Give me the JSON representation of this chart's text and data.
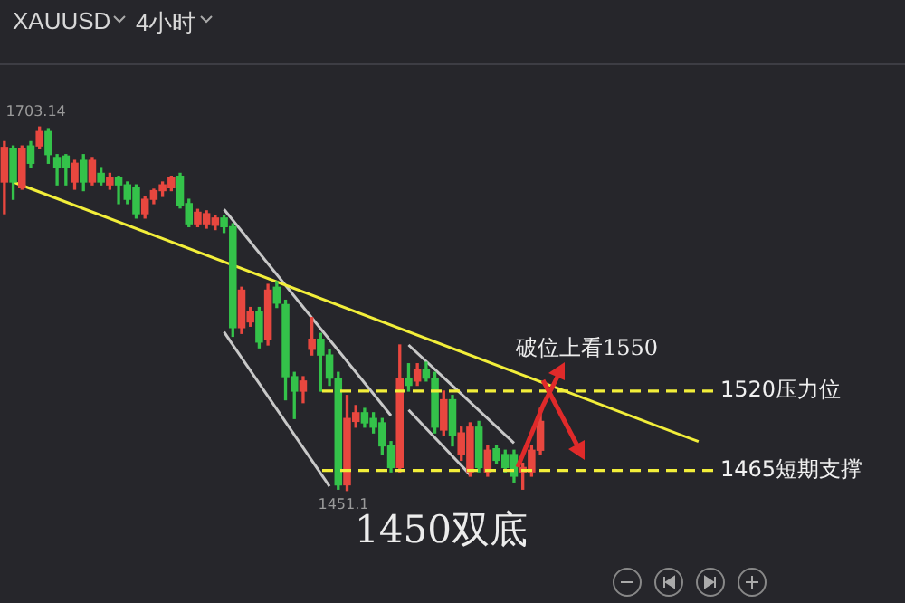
{
  "chart_data": {
    "type": "candlestick",
    "title": "XAUUSD",
    "subtitle": "4小时",
    "categories": [
      null,
      null,
      null,
      null,
      null,
      null,
      null,
      null,
      null,
      null,
      null,
      null,
      null,
      null,
      null,
      null,
      null,
      null,
      null,
      null,
      null,
      null,
      null,
      null,
      null,
      null,
      null,
      null,
      null,
      null,
      null,
      null,
      null,
      null,
      null,
      null,
      null,
      null,
      null,
      null,
      null,
      null,
      null,
      null,
      null,
      null,
      null,
      null,
      null,
      null,
      null,
      null,
      null,
      null,
      null,
      null,
      null,
      null,
      null,
      null,
      null,
      null,
      null,
      null,
      null,
      null,
      null,
      null,
      null,
      null,
      null,
      null,
      null,
      null,
      null,
      null,
      null,
      null,
      null,
      null,
      null,
      null,
      null,
      null,
      null,
      null,
      null,
      null,
      null,
      null,
      null,
      null,
      null,
      null,
      null,
      null,
      null,
      null,
      null,
      null,
      null,
      null,
      null
    ],
    "ohlc": [
      [
        1665,
        1693,
        1643,
        1689
      ],
      [
        1688,
        1690,
        1653,
        1665
      ],
      [
        1661,
        1690,
        1660,
        1688
      ],
      [
        1690,
        1693,
        1675,
        1678
      ],
      [
        1690,
        1703.14,
        1688,
        1700
      ],
      [
        1700,
        1702,
        1678,
        1684
      ],
      [
        1682,
        1684,
        1663,
        1675
      ],
      [
        1683,
        1684,
        1663,
        1675
      ],
      [
        1665,
        1680,
        1660,
        1678
      ],
      [
        1680,
        1684,
        1659,
        1665
      ],
      [
        1665,
        1682,
        1663,
        1680
      ],
      [
        1671,
        1675,
        1663,
        1665
      ],
      [
        1663,
        1671,
        1660,
        1668
      ],
      [
        1668,
        1669,
        1650,
        1663
      ],
      [
        1663,
        1665,
        1650,
        1653
      ],
      [
        1661,
        1663,
        1640,
        1643
      ],
      [
        1643,
        1655,
        1640,
        1653
      ],
      [
        1653,
        1660,
        1650,
        1659
      ],
      [
        1659,
        1665,
        1655,
        1663
      ],
      [
        1661,
        1669,
        1659,
        1668
      ],
      [
        1669,
        1671,
        1647,
        1649
      ],
      [
        1650,
        1653,
        1634,
        1636
      ],
      [
        1636,
        1646,
        1634,
        1644
      ],
      [
        1636,
        1645,
        1633,
        1643
      ],
      [
        1635,
        1642,
        1632,
        1640
      ],
      [
        1640,
        1642,
        1630,
        1634
      ],
      [
        1634,
        1636,
        1558,
        1564
      ],
      [
        1564,
        1592,
        1560,
        1590
      ],
      [
        1568,
        1578,
        1565,
        1575
      ],
      [
        1575,
        1578,
        1550,
        1554
      ],
      [
        1556,
        1594,
        1552,
        1590
      ],
      [
        1592,
        1596,
        1578,
        1581
      ],
      [
        1580,
        1583,
        1514,
        1530
      ],
      [
        1530,
        1533,
        1501,
        1520
      ],
      [
        1520,
        1530,
        1512,
        1527
      ],
      [
        1549,
        1571,
        1545,
        1556
      ],
      [
        1556,
        1560,
        1520,
        1545
      ],
      [
        1545,
        1549,
        1524,
        1529
      ],
      [
        1529,
        1533,
        1452,
        1455
      ],
      [
        1455,
        1517,
        1451.1,
        1501
      ],
      [
        1499,
        1510,
        1495,
        1505
      ],
      [
        1505,
        1508,
        1495,
        1498
      ],
      [
        1501,
        1505,
        1491,
        1495
      ],
      [
        1498,
        1501,
        1476,
        1482
      ],
      [
        1482,
        1485,
        1464,
        1467
      ],
      [
        1467,
        1552,
        1464,
        1529
      ],
      [
        1529,
        1539,
        1520,
        1524
      ],
      [
        1527,
        1539,
        1524,
        1535
      ],
      [
        1535,
        1540,
        1527,
        1529
      ],
      [
        1529,
        1533,
        1491,
        1495
      ],
      [
        1493,
        1520,
        1489,
        1514
      ],
      [
        1514,
        1517,
        1482,
        1489
      ],
      [
        1476,
        1495,
        1472,
        1491
      ],
      [
        1464,
        1498,
        1461,
        1495
      ],
      [
        1495,
        1499,
        1464,
        1467
      ],
      [
        1464,
        1482,
        1461,
        1479
      ],
      [
        1480,
        1482,
        1470,
        1472
      ],
      [
        1476,
        1479,
        1464,
        1467
      ],
      [
        1476,
        1479,
        1457,
        1461
      ],
      [
        1464,
        1470,
        1452,
        1467
      ],
      [
        1464,
        1482,
        1461,
        1479
      ],
      [
        1479,
        1508,
        1476,
        1499
      ],
      null,
      null,
      null,
      null,
      null,
      null,
      null,
      null,
      null,
      null,
      null,
      null,
      null,
      null,
      null,
      null,
      null,
      null,
      null,
      null,
      null,
      null,
      null,
      null,
      null,
      null,
      null,
      null,
      null,
      null,
      null,
      null,
      null,
      null,
      null,
      null,
      null,
      null,
      null,
      null,
      null
    ],
    "colors": [
      "#e8473f",
      "#34c24a",
      "#e8473f",
      "#34c24a",
      "#e8473f",
      "#34c24a",
      "#34c24a",
      "#34c24a",
      "#e8473f",
      "#34c24a",
      "#e8473f",
      "#34c24a",
      "#e8473f",
      "#34c24a",
      "#34c24a",
      "#34c24a",
      "#e8473f",
      "#e8473f",
      "#e8473f",
      "#e8473f",
      "#34c24a",
      "#34c24a",
      "#e8473f",
      "#e8473f",
      "#e8473f",
      "#34c24a",
      "#34c24a",
      "#e8473f",
      "#e8473f",
      "#34c24a",
      "#e8473f",
      "#34c24a",
      "#34c24a",
      "#34c24a",
      "#e8473f",
      "#e8473f",
      "#34c24a",
      "#34c24a",
      "#34c24a",
      "#e8473f",
      "#e8473f",
      "#34c24a",
      "#34c24a",
      "#34c24a",
      "#34c24a",
      "#e8473f",
      "#34c24a",
      "#e8473f",
      "#34c24a",
      "#34c24a",
      "#e8473f",
      "#34c24a",
      "#e8473f",
      "#e8473f",
      "#34c24a",
      "#e8473f",
      "#34c24a",
      "#34c24a",
      "#34c24a",
      "#e8473f",
      "#e8473f",
      "#e8473f",
      null,
      null,
      null,
      null,
      null,
      null,
      null,
      null,
      null,
      null,
      null,
      null,
      null,
      null,
      null,
      null,
      null,
      null,
      null,
      null,
      null,
      null,
      null,
      null,
      null,
      null,
      null,
      null,
      null,
      null,
      null,
      null,
      null,
      null,
      null,
      null,
      null,
      null,
      null,
      null,
      null
    ],
    "series": [
      {
        "type": "line",
        "color": "#f2ee3a",
        "values": [
          null,
          1665,
          null,
          null,
          null,
          null,
          null,
          null,
          null,
          null,
          null,
          null,
          null,
          null,
          null,
          null,
          null,
          null,
          null,
          null,
          null,
          null,
          null,
          null,
          null,
          null,
          null,
          null,
          null,
          null,
          null,
          null,
          null,
          null,
          null,
          null,
          null,
          null,
          null,
          null,
          null,
          null,
          null,
          null,
          null,
          null,
          null,
          null,
          null,
          null,
          null,
          null,
          null,
          null,
          null,
          null,
          null,
          null,
          null,
          null,
          null,
          null,
          null,
          null,
          null,
          null,
          null,
          null,
          null,
          null,
          null,
          null,
          null,
          null,
          null,
          null,
          null,
          null,
          null,
          1485,
          null,
          null,
          null,
          null,
          null,
          null,
          null,
          null,
          null,
          null,
          null,
          null,
          null,
          null,
          null,
          null,
          null,
          null,
          null,
          null,
          null,
          null,
          null
        ]
      },
      {
        "type": "line",
        "color": "#c8c8c8",
        "values": [
          null,
          null,
          null,
          null,
          null,
          null,
          null,
          null,
          null,
          null,
          null,
          null,
          null,
          null,
          null,
          null,
          null,
          null,
          null,
          null,
          null,
          null,
          null,
          null,
          null,
          1646,
          null,
          null,
          null,
          null,
          null,
          null,
          null,
          null,
          null,
          null,
          null,
          null,
          null,
          null,
          null,
          null,
          null,
          null,
          1503,
          null,
          null,
          null,
          null,
          null,
          null,
          null,
          null,
          null,
          null,
          null,
          null,
          null,
          null,
          null,
          null,
          null,
          null,
          null,
          null,
          null,
          null,
          null,
          null,
          null,
          null,
          null,
          null,
          null,
          null,
          null,
          null,
          null,
          null,
          null,
          null,
          null,
          null,
          null,
          null,
          null,
          null,
          null,
          null,
          null,
          null,
          null,
          null,
          null,
          null,
          null,
          null,
          null,
          null,
          null,
          null,
          null,
          null
        ]
      },
      {
        "type": "line",
        "color": "#c8c8c8",
        "values": [
          null,
          null,
          null,
          null,
          null,
          null,
          null,
          null,
          null,
          null,
          null,
          null,
          null,
          null,
          null,
          null,
          null,
          null,
          null,
          null,
          null,
          null,
          null,
          null,
          null,
          1561,
          null,
          null,
          null,
          null,
          null,
          null,
          null,
          null,
          null,
          null,
          null,
          1454,
          null,
          null,
          null,
          null,
          null,
          null,
          null,
          null,
          null,
          null,
          null,
          null,
          null,
          null,
          null,
          null,
          null,
          null,
          null,
          null,
          null,
          null,
          null,
          null,
          null,
          null,
          null,
          null,
          null,
          null,
          null,
          null,
          null,
          null,
          null,
          null,
          null,
          null,
          null,
          null,
          null,
          null,
          null,
          null,
          null,
          null,
          null,
          null,
          null,
          null,
          null,
          null,
          null,
          null,
          null,
          null,
          null,
          null,
          null,
          null,
          null,
          null,
          null,
          null,
          null
        ]
      },
      {
        "type": "line",
        "color": "#c8c8c8",
        "values": [
          null,
          null,
          null,
          null,
          null,
          null,
          null,
          null,
          null,
          null,
          null,
          null,
          null,
          null,
          null,
          null,
          null,
          null,
          null,
          null,
          null,
          null,
          null,
          null,
          null,
          null,
          null,
          null,
          null,
          null,
          null,
          null,
          null,
          null,
          null,
          null,
          null,
          null,
          null,
          null,
          null,
          null,
          null,
          null,
          null,
          null,
          1552,
          null,
          null,
          null,
          null,
          null,
          null,
          null,
          null,
          null,
          null,
          null,
          1484,
          null,
          null,
          null,
          null,
          null,
          null,
          null,
          null,
          null,
          null,
          null,
          null,
          null,
          null,
          null,
          null,
          null,
          null,
          null,
          null,
          null,
          null,
          null,
          null,
          null,
          null,
          null,
          null,
          null,
          null,
          null,
          null,
          null,
          null,
          null,
          null,
          null,
          null,
          null,
          null,
          null,
          null,
          null,
          null
        ]
      },
      {
        "type": "line",
        "color": "#c8c8c8",
        "values": [
          null,
          null,
          null,
          null,
          null,
          null,
          null,
          null,
          null,
          null,
          null,
          null,
          null,
          null,
          null,
          null,
          null,
          null,
          null,
          null,
          null,
          null,
          null,
          null,
          null,
          null,
          null,
          null,
          null,
          null,
          null,
          null,
          null,
          null,
          null,
          null,
          null,
          null,
          null,
          null,
          null,
          null,
          null,
          null,
          null,
          null,
          1507,
          null,
          null,
          null,
          null,
          null,
          null,
          1462,
          null,
          null,
          null,
          null,
          null,
          null,
          null,
          null,
          null,
          null,
          null,
          null,
          null,
          null,
          null,
          null,
          null,
          null,
          null,
          null,
          null,
          null,
          null,
          null,
          null,
          null,
          null,
          null,
          null,
          null,
          null,
          null,
          null,
          null,
          null,
          null,
          null,
          null,
          null,
          null,
          null,
          null,
          null,
          null,
          null,
          null,
          null,
          null,
          null
        ]
      }
    ],
    "ref_lines": [
      {
        "axis": "y",
        "value": 1520,
        "label": "1520压力位",
        "color": "#f2ee3a",
        "line_style": "dashed"
      },
      {
        "axis": "y",
        "value": 1465,
        "label": "1465短期支撑",
        "color": "#f2ee3a",
        "line_style": "dashed"
      }
    ],
    "annotations": [
      {
        "text": "1703.14",
        "y": 1703.14
      },
      {
        "text": "1451.1",
        "y": 1451.1
      },
      "破位上看1550",
      "1450双底"
    ],
    "tick_labels": false,
    "legend": false
  }
}
